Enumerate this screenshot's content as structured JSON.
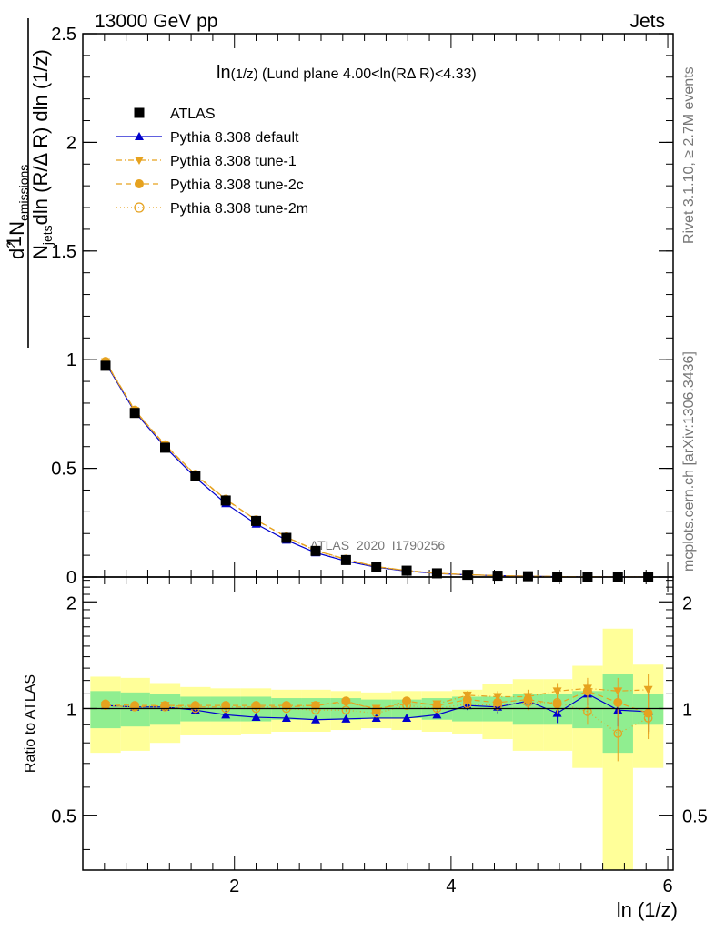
{
  "header": {
    "energy_label": "13000 GeV pp",
    "process_label": "Jets",
    "rivet_label": "Rivet 3.1.10, ≥ 2.7M events",
    "mcplots_label": "mcplots.cern.ch [arXiv:1306.3436]",
    "watermark": "ATLAS_2020_I1790256"
  },
  "chart_data": [
    {
      "type": "line",
      "title_main": "ln",
      "title_sub": "(1/z)",
      "title_rest": " (Lund plane 4.00<ln(RΔ R)<4.33)",
      "ylabel_prefix": "1",
      "ylabel_denominator": "N",
      "ylabel_denominator_sub": "jets",
      "ylabel_denominator_rest": "dln (R/Δ R) dln (1/z)",
      "ylabel_numerator": "d",
      "ylabel_numerator_sup": "2",
      "ylabel_numerator_mid": " N",
      "ylabel_numerator_sub": "emissions",
      "xlim": [
        0.6,
        6.05
      ],
      "ylim": [
        0,
        2.5
      ],
      "y_ticks": [
        0,
        0.5,
        1,
        1.5,
        2,
        2.5
      ],
      "y_tick_labels": [
        "0",
        "0.5",
        "1",
        "1.5",
        "2",
        "2.5"
      ],
      "legend_position": "top-left",
      "x": [
        0.81,
        1.08,
        1.36,
        1.64,
        1.92,
        2.2,
        2.48,
        2.75,
        3.03,
        3.31,
        3.59,
        3.87,
        4.15,
        4.43,
        4.71,
        4.98,
        5.26,
        5.54,
        5.82
      ],
      "series": [
        {
          "name": "ATLAS",
          "color": "#000000",
          "marker": "square",
          "values": [
            0.972,
            0.755,
            0.595,
            0.465,
            0.352,
            0.258,
            0.18,
            0.12,
            0.078,
            0.047,
            0.029,
            0.017,
            0.01,
            0.006,
            0.0035,
            0.002,
            0.001,
            0.0006,
            0.0003
          ]
        },
        {
          "name": "Pythia 8.308 default",
          "color": "#0000cc",
          "marker": "triangle-up",
          "values": [
            0.985,
            0.76,
            0.598,
            0.458,
            0.338,
            0.244,
            0.17,
            0.112,
            0.073,
            0.045,
            0.027,
            0.016,
            0.0103,
            0.0062,
            0.0037,
            0.0019,
            0.0011,
            0.0006,
            0.0003
          ]
        },
        {
          "name": "Pythia 8.308 tune-1",
          "color": "#e6a21f",
          "marker": "triangle-down",
          "values": [
            0.99,
            0.765,
            0.605,
            0.47,
            0.356,
            0.262,
            0.184,
            0.122,
            0.081,
            0.048,
            0.03,
            0.017,
            0.011,
            0.0062,
            0.0038,
            0.0022,
            0.0012,
            0.0006,
            0.0003
          ]
        },
        {
          "name": "Pythia 8.308 tune-2c",
          "color": "#e6a21f",
          "marker": "circle",
          "values": [
            0.992,
            0.768,
            0.608,
            0.472,
            0.358,
            0.263,
            0.185,
            0.123,
            0.082,
            0.047,
            0.03,
            0.017,
            0.011,
            0.0061,
            0.0038,
            0.002,
            0.0011,
            0.0006,
            0.0003
          ]
        },
        {
          "name": "Pythia 8.308 tune-2m",
          "color": "#e6a21f",
          "marker": "open-circle",
          "values": [
            0.988,
            0.765,
            0.605,
            0.468,
            0.356,
            0.262,
            0.182,
            0.121,
            0.078,
            0.046,
            0.03,
            0.017,
            0.0105,
            0.0061,
            0.0037,
            0.0021,
            0.001,
            0.0005,
            0.0003
          ]
        }
      ]
    },
    {
      "type": "line",
      "ylabel": "Ratio to ATLAS",
      "xlabel": "ln (1/z)",
      "xlim": [
        0.6,
        6.05
      ],
      "ylim": [
        0.35,
        2.35
      ],
      "x_ticks": [
        2,
        4,
        6
      ],
      "x_tick_labels": [
        "2",
        "4",
        "6"
      ],
      "y_ticks": [
        0.5,
        1,
        2
      ],
      "y_tick_labels": [
        "0.5",
        "1",
        "2"
      ],
      "x_edges": [
        0.67,
        0.95,
        1.22,
        1.5,
        1.78,
        2.06,
        2.34,
        2.62,
        2.89,
        3.17,
        3.45,
        3.73,
        4.01,
        4.29,
        4.57,
        4.85,
        5.12,
        5.4,
        5.68,
        5.96
      ],
      "band_inner": {
        "color": "#90ee90",
        "low": [
          0.88,
          0.89,
          0.9,
          0.92,
          0.92,
          0.92,
          0.93,
          0.93,
          0.93,
          0.94,
          0.94,
          0.93,
          0.92,
          0.92,
          0.9,
          0.9,
          0.88,
          0.75,
          0.9
        ],
        "high": [
          1.12,
          1.11,
          1.1,
          1.08,
          1.08,
          1.08,
          1.07,
          1.07,
          1.07,
          1.06,
          1.06,
          1.07,
          1.08,
          1.08,
          1.1,
          1.1,
          1.12,
          1.25,
          1.1
        ]
      },
      "band_outer": {
        "color": "#ffff99",
        "low": [
          0.75,
          0.76,
          0.8,
          0.84,
          0.84,
          0.85,
          0.86,
          0.86,
          0.87,
          0.88,
          0.87,
          0.86,
          0.85,
          0.82,
          0.76,
          0.76,
          0.68,
          0.35,
          0.68
        ],
        "high": [
          1.23,
          1.22,
          1.18,
          1.15,
          1.14,
          1.14,
          1.13,
          1.13,
          1.12,
          1.11,
          1.12,
          1.12,
          1.13,
          1.17,
          1.21,
          1.21,
          1.32,
          1.68,
          1.33
        ]
      },
      "series": [
        {
          "name": "Pythia 8.308 default",
          "color": "#0000cc",
          "values": [
            1.02,
            1.01,
            1.01,
            0.99,
            0.96,
            0.945,
            0.94,
            0.93,
            0.935,
            0.94,
            0.94,
            0.96,
            1.02,
            1.01,
            1.05,
            0.97,
            1.1,
            0.99,
            0.98
          ],
          "err": [
            0.01,
            0.01,
            0.01,
            0.01,
            0.01,
            0.01,
            0.01,
            0.01,
            0.01,
            0.01,
            0.01,
            0.02,
            0.03,
            0.04,
            0.05,
            0.06,
            0.08,
            0.1,
            0.12
          ]
        },
        {
          "name": "Pythia 8.308 tune-1",
          "color": "#e6a21f",
          "values": [
            1.02,
            1.01,
            1.02,
            1.01,
            1.01,
            1.01,
            1.01,
            1.02,
            1.04,
            1.0,
            1.03,
            1.03,
            1.09,
            1.08,
            1.08,
            1.12,
            1.14,
            1.12,
            1.13
          ],
          "err": [
            0.01,
            0.01,
            0.01,
            0.01,
            0.01,
            0.01,
            0.01,
            0.01,
            0.01,
            0.01,
            0.01,
            0.02,
            0.03,
            0.04,
            0.05,
            0.06,
            0.08,
            0.1,
            0.12
          ]
        },
        {
          "name": "Pythia 8.308 tune-2c",
          "color": "#e6a21f",
          "values": [
            1.03,
            1.02,
            1.02,
            1.02,
            1.02,
            1.02,
            1.02,
            1.02,
            1.05,
            0.99,
            1.05,
            1.02,
            1.06,
            1.04,
            1.06,
            1.03,
            1.12,
            1.04,
            0.97
          ],
          "err": [
            0.01,
            0.01,
            0.01,
            0.01,
            0.01,
            0.01,
            0.01,
            0.01,
            0.01,
            0.01,
            0.01,
            0.02,
            0.03,
            0.04,
            0.05,
            0.06,
            0.08,
            0.1,
            0.12
          ]
        },
        {
          "name": "Pythia 8.308 tune-2m",
          "color": "#e6a21f",
          "values": [
            1.02,
            1.01,
            1.01,
            1.0,
            1.0,
            1.0,
            1.0,
            0.99,
            0.99,
            0.97,
            1.02,
            1.0,
            1.03,
            1.02,
            1.04,
            1.04,
            0.98,
            0.85,
            0.94
          ],
          "err": [
            0.01,
            0.01,
            0.01,
            0.01,
            0.01,
            0.01,
            0.01,
            0.01,
            0.01,
            0.01,
            0.01,
            0.02,
            0.03,
            0.04,
            0.05,
            0.06,
            0.08,
            0.14,
            0.12
          ]
        }
      ]
    }
  ]
}
